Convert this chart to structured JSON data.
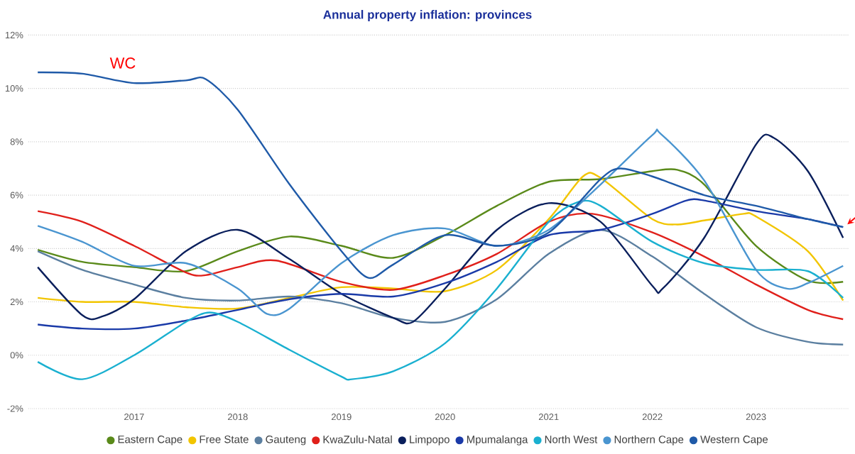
{
  "chart_data": {
    "type": "line",
    "title": "Annual property inflation: provinces",
    "xlim": [
      2015.98,
      2023.9
    ],
    "xticks": [
      2017,
      2018,
      2019,
      2020,
      2021,
      2022,
      2023
    ],
    "ylim": [
      -2,
      12
    ],
    "yticks": [
      {
        "value": -2,
        "label": "-2%"
      },
      {
        "value": 0,
        "label": "0%"
      },
      {
        "value": 2,
        "label": "2%"
      },
      {
        "value": 4,
        "label": "4%"
      },
      {
        "value": 6,
        "label": "6%"
      },
      {
        "value": 8,
        "label": "8%"
      },
      {
        "value": 10,
        "label": "10%"
      },
      {
        "value": 12,
        "label": "12%"
      }
    ],
    "grid": "y",
    "legend": "bottom",
    "annotations": [
      "WC"
    ],
    "series": [
      {
        "name": "Eastern Cape",
        "color": "#5a8a1a",
        "x": [
          2016.07,
          2016.5,
          2017,
          2017.5,
          2018,
          2018.5,
          2019,
          2019.5,
          2020,
          2020.5,
          2021,
          2021.5,
          2022,
          2022.24,
          2022.5,
          2023,
          2023.5,
          2023.84
        ],
        "values": [
          3.95,
          3.5,
          3.3,
          3.15,
          3.9,
          4.45,
          4.1,
          3.65,
          4.5,
          5.6,
          6.5,
          6.6,
          6.9,
          6.95,
          6.4,
          4.1,
          2.8,
          2.75
        ]
      },
      {
        "name": "Free State",
        "color": "#f2c500",
        "x": [
          2016.07,
          2016.5,
          2017,
          2017.5,
          2018,
          2018.5,
          2019,
          2019.5,
          2020,
          2020.5,
          2021,
          2021.33,
          2021.5,
          2022,
          2022.24,
          2022.5,
          2022.88,
          2023,
          2023.5,
          2023.84
        ],
        "values": [
          2.15,
          2.0,
          2.0,
          1.8,
          1.75,
          2.15,
          2.55,
          2.5,
          2.4,
          3.2,
          5.1,
          6.7,
          6.65,
          5.1,
          4.9,
          5.05,
          5.3,
          5.2,
          3.9,
          2.05
        ]
      },
      {
        "name": "Gauteng",
        "color": "#5b7fa0",
        "x": [
          2016.07,
          2016.5,
          2017,
          2017.5,
          2018,
          2018.5,
          2019,
          2019.5,
          2020,
          2020.5,
          2021,
          2021.5,
          2022,
          2022.5,
          2023,
          2023.5,
          2023.84
        ],
        "values": [
          3.9,
          3.2,
          2.65,
          2.15,
          2.05,
          2.2,
          1.95,
          1.4,
          1.25,
          2.1,
          3.8,
          4.7,
          3.7,
          2.3,
          1.05,
          0.5,
          0.4
        ]
      },
      {
        "name": "KwaZulu-Natal",
        "color": "#e0201b",
        "x": [
          2016.07,
          2016.5,
          2017,
          2017.5,
          2017.69,
          2018,
          2018.37,
          2019,
          2019.5,
          2020,
          2020.5,
          2021,
          2021.42,
          2022,
          2022.5,
          2023,
          2023.5,
          2023.84
        ],
        "values": [
          5.4,
          5.0,
          4.1,
          3.1,
          3.0,
          3.3,
          3.55,
          2.75,
          2.45,
          3.0,
          3.8,
          5.0,
          5.3,
          4.6,
          3.7,
          2.65,
          1.7,
          1.35
        ]
      },
      {
        "name": "Limpopo",
        "color": "#0a1f5c",
        "x": [
          2016.07,
          2016.5,
          2016.69,
          2017,
          2017.5,
          2018,
          2018.5,
          2019,
          2019.5,
          2019.69,
          2020,
          2020.5,
          2021,
          2021.5,
          2022,
          2022.1,
          2022.5,
          2023,
          2023.17,
          2023.5,
          2023.84
        ],
        "values": [
          3.3,
          1.5,
          1.45,
          2.1,
          3.9,
          4.7,
          3.6,
          2.3,
          1.4,
          1.25,
          2.5,
          4.7,
          5.7,
          5.0,
          2.6,
          2.5,
          4.4,
          7.9,
          8.15,
          6.9,
          4.4
        ]
      },
      {
        "name": "Mpumalanga",
        "color": "#1a3aa8",
        "x": [
          2016.07,
          2016.5,
          2017,
          2017.5,
          2018,
          2018.5,
          2019,
          2019.5,
          2020,
          2020.5,
          2021,
          2021.5,
          2022,
          2022.33,
          2022.5,
          2023,
          2023.5,
          2023.84
        ],
        "values": [
          1.15,
          1.0,
          1.0,
          1.3,
          1.7,
          2.1,
          2.3,
          2.2,
          2.7,
          3.5,
          4.5,
          4.7,
          5.3,
          5.8,
          5.8,
          5.4,
          5.1,
          4.8
        ]
      },
      {
        "name": "North West",
        "color": "#1ab0d0",
        "x": [
          2016.07,
          2016.5,
          2017,
          2017.5,
          2017.73,
          2018,
          2018.5,
          2019,
          2019.1,
          2019.5,
          2020,
          2020.5,
          2021,
          2021.29,
          2021.5,
          2022,
          2022.5,
          2023,
          2023.5,
          2023.84
        ],
        "values": [
          -0.25,
          -0.9,
          0.0,
          1.25,
          1.6,
          1.25,
          0.2,
          -0.8,
          -0.9,
          -0.6,
          0.45,
          2.5,
          5.0,
          5.75,
          5.6,
          4.25,
          3.45,
          3.2,
          3.15,
          2.15
        ]
      },
      {
        "name": "Northern Cape",
        "color": "#4a95d0",
        "x": [
          2016.07,
          2016.5,
          2017,
          2017.5,
          2018,
          2018.28,
          2018.5,
          2019,
          2019.5,
          2020,
          2020.5,
          2021,
          2021.5,
          2022,
          2022.08,
          2022.5,
          2023,
          2023.29,
          2023.5,
          2023.84
        ],
        "values": [
          4.85,
          4.25,
          3.35,
          3.45,
          2.5,
          1.55,
          1.75,
          3.45,
          4.5,
          4.75,
          4.1,
          4.7,
          6.4,
          8.25,
          8.3,
          6.55,
          3.2,
          2.5,
          2.7,
          3.35
        ]
      },
      {
        "name": "Western Cape",
        "color": "#1f5aa8",
        "x": [
          2016.07,
          2016.5,
          2017,
          2017.5,
          2017.69,
          2018,
          2018.5,
          2019,
          2019.26,
          2019.5,
          2020,
          2020.5,
          2021,
          2021.5,
          2021.69,
          2022,
          2022.5,
          2023,
          2023.5,
          2023.84
        ],
        "values": [
          10.6,
          10.55,
          10.2,
          10.3,
          10.35,
          9.2,
          6.4,
          3.9,
          2.9,
          3.4,
          4.5,
          4.1,
          4.6,
          6.6,
          7.0,
          6.7,
          6.0,
          5.6,
          5.1,
          4.8
        ]
      }
    ]
  }
}
